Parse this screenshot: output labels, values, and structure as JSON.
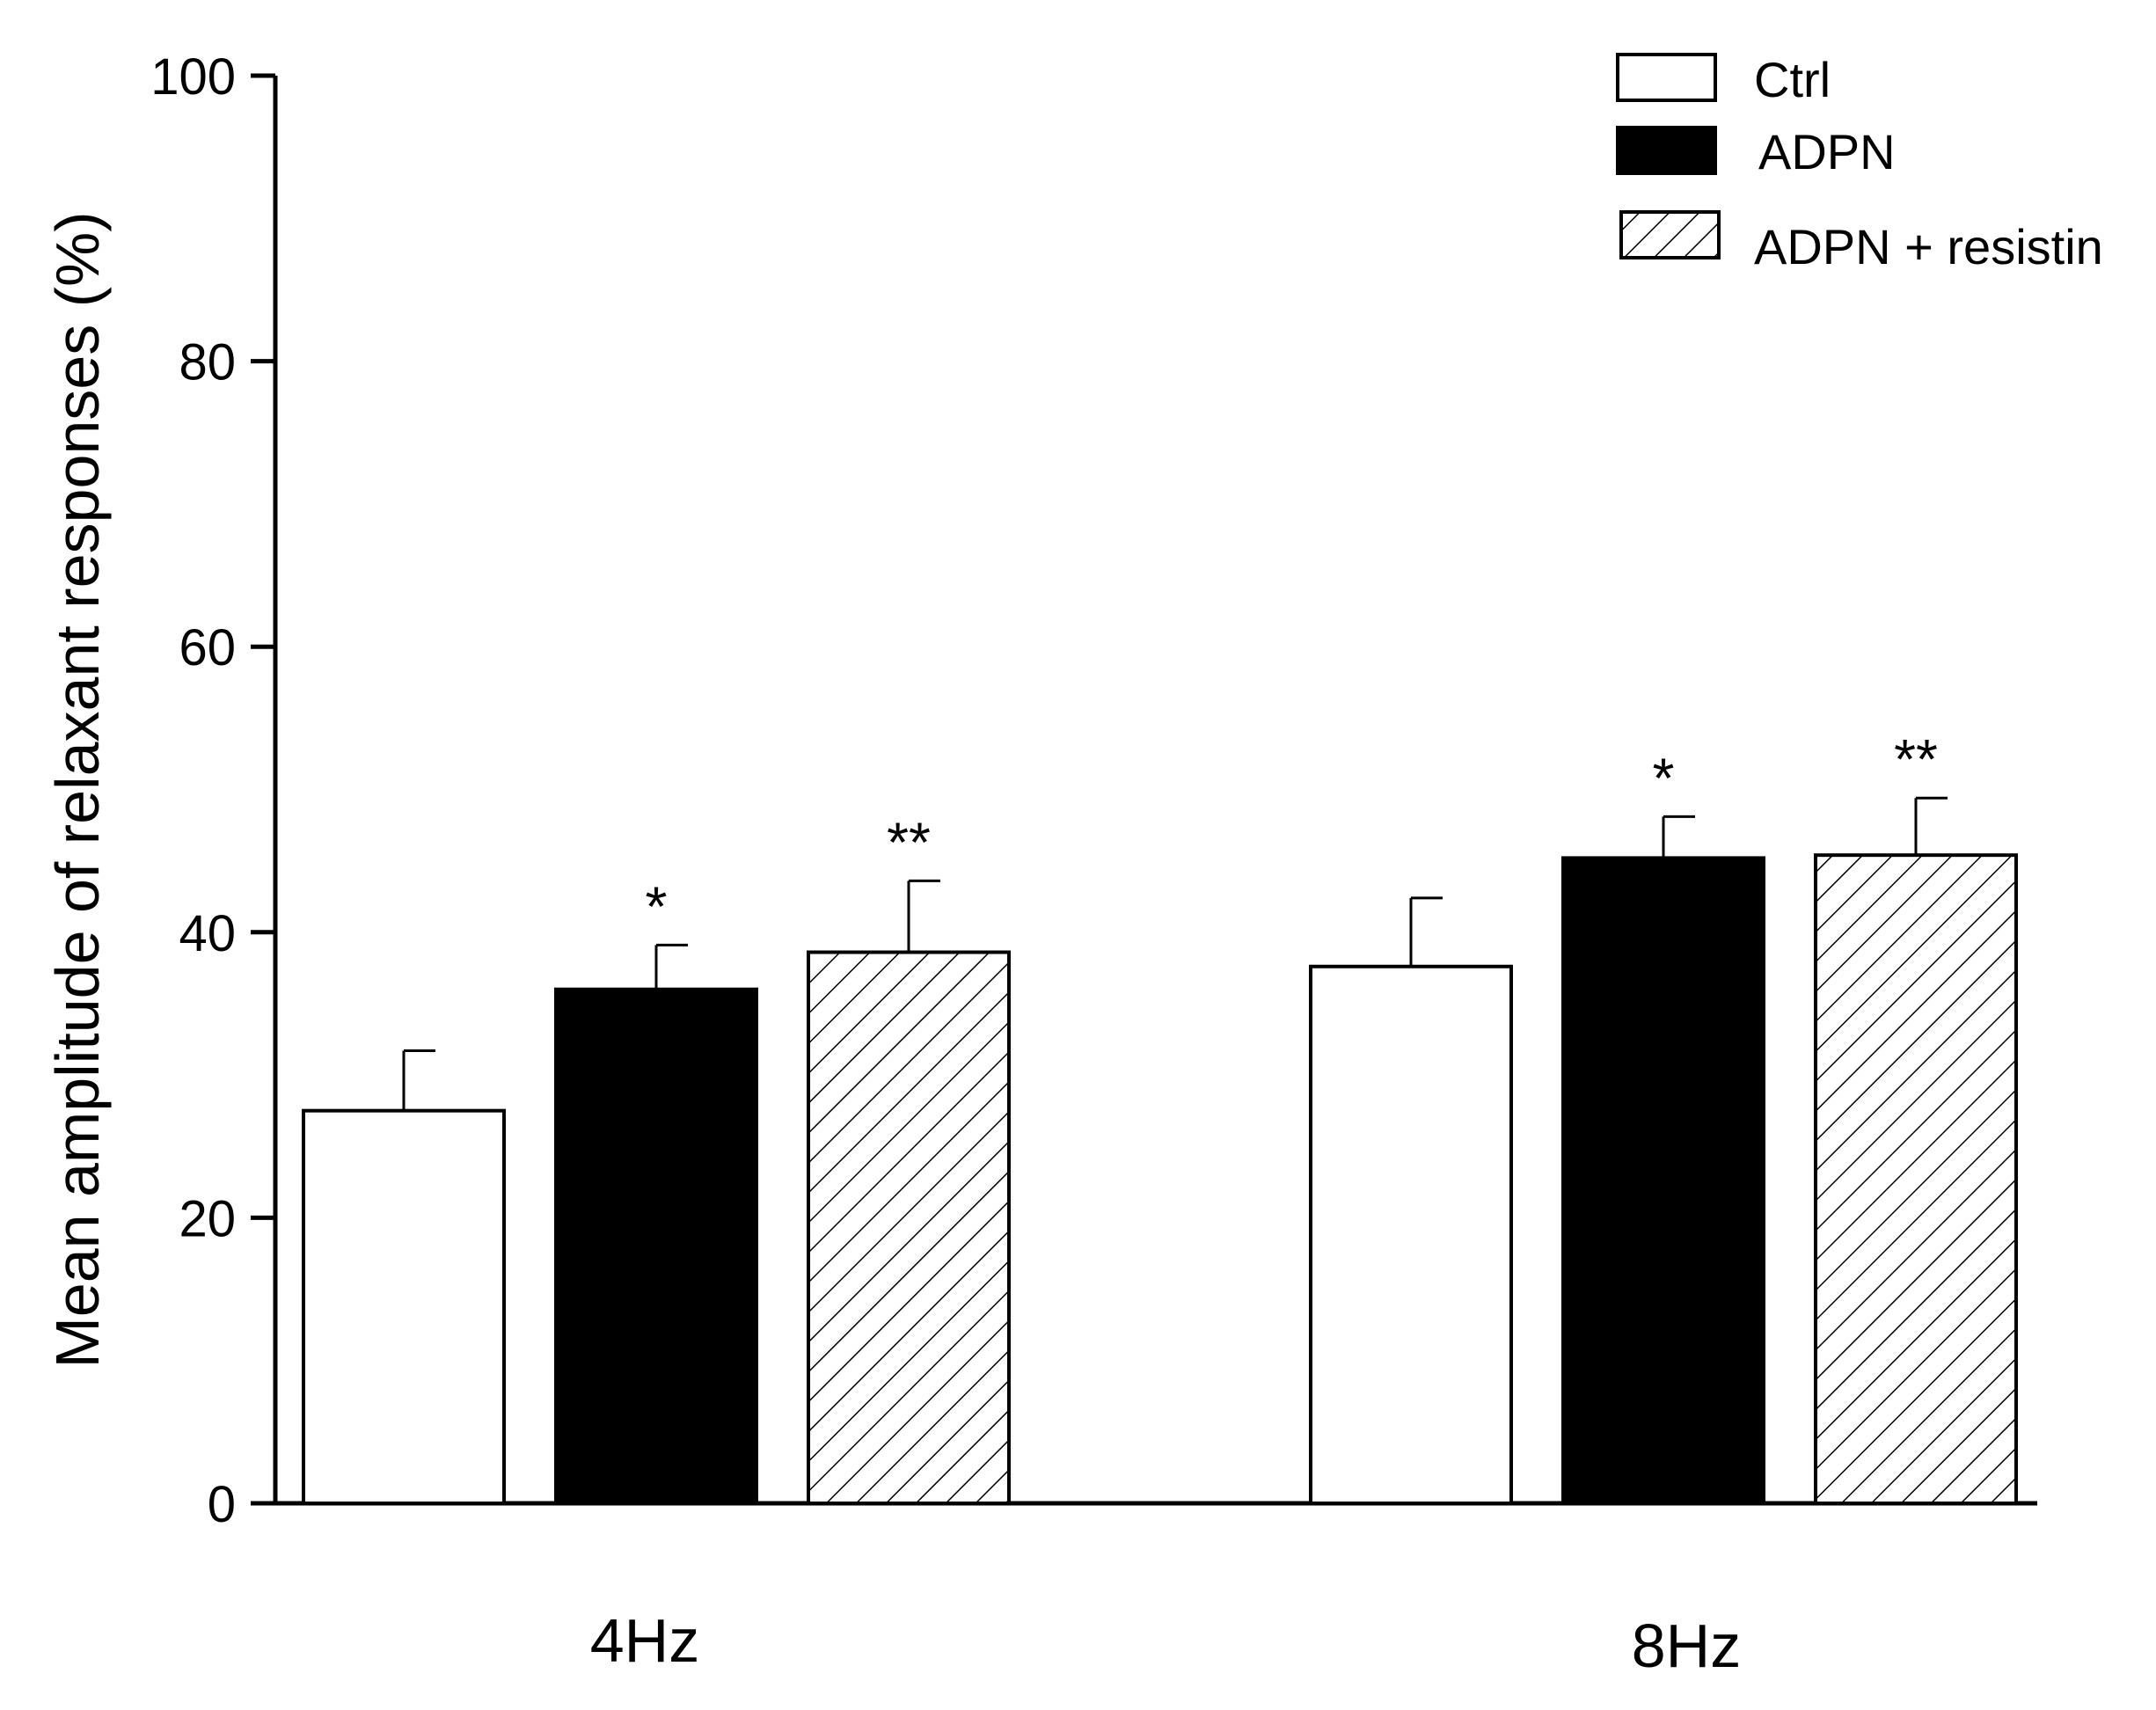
{
  "chart_data": {
    "type": "bar",
    "title": "",
    "xlabel": "",
    "ylabel": "Mean amplitude of relaxant responses (%)",
    "ylim": [
      0,
      100
    ],
    "yticks": [
      0,
      20,
      40,
      60,
      80,
      100
    ],
    "categories": [
      "4Hz",
      "8Hz"
    ],
    "legend_position": "top-right",
    "series": [
      {
        "name": "Ctrl",
        "fill": "white",
        "values": [
          27.5,
          37.6
        ],
        "errors": [
          4.2,
          4.8
        ],
        "annotations": [
          "",
          ""
        ]
      },
      {
        "name": "ADPN",
        "fill": "black",
        "values": [
          36.0,
          45.2
        ],
        "errors": [
          3.1,
          2.9
        ],
        "annotations": [
          "*",
          "*"
        ]
      },
      {
        "name": "ADPN + resistin",
        "fill": "hatched",
        "values": [
          38.6,
          45.4
        ],
        "errors": [
          5.0,
          4.0
        ],
        "annotations": [
          "**",
          "**"
        ]
      }
    ],
    "grid": false
  }
}
